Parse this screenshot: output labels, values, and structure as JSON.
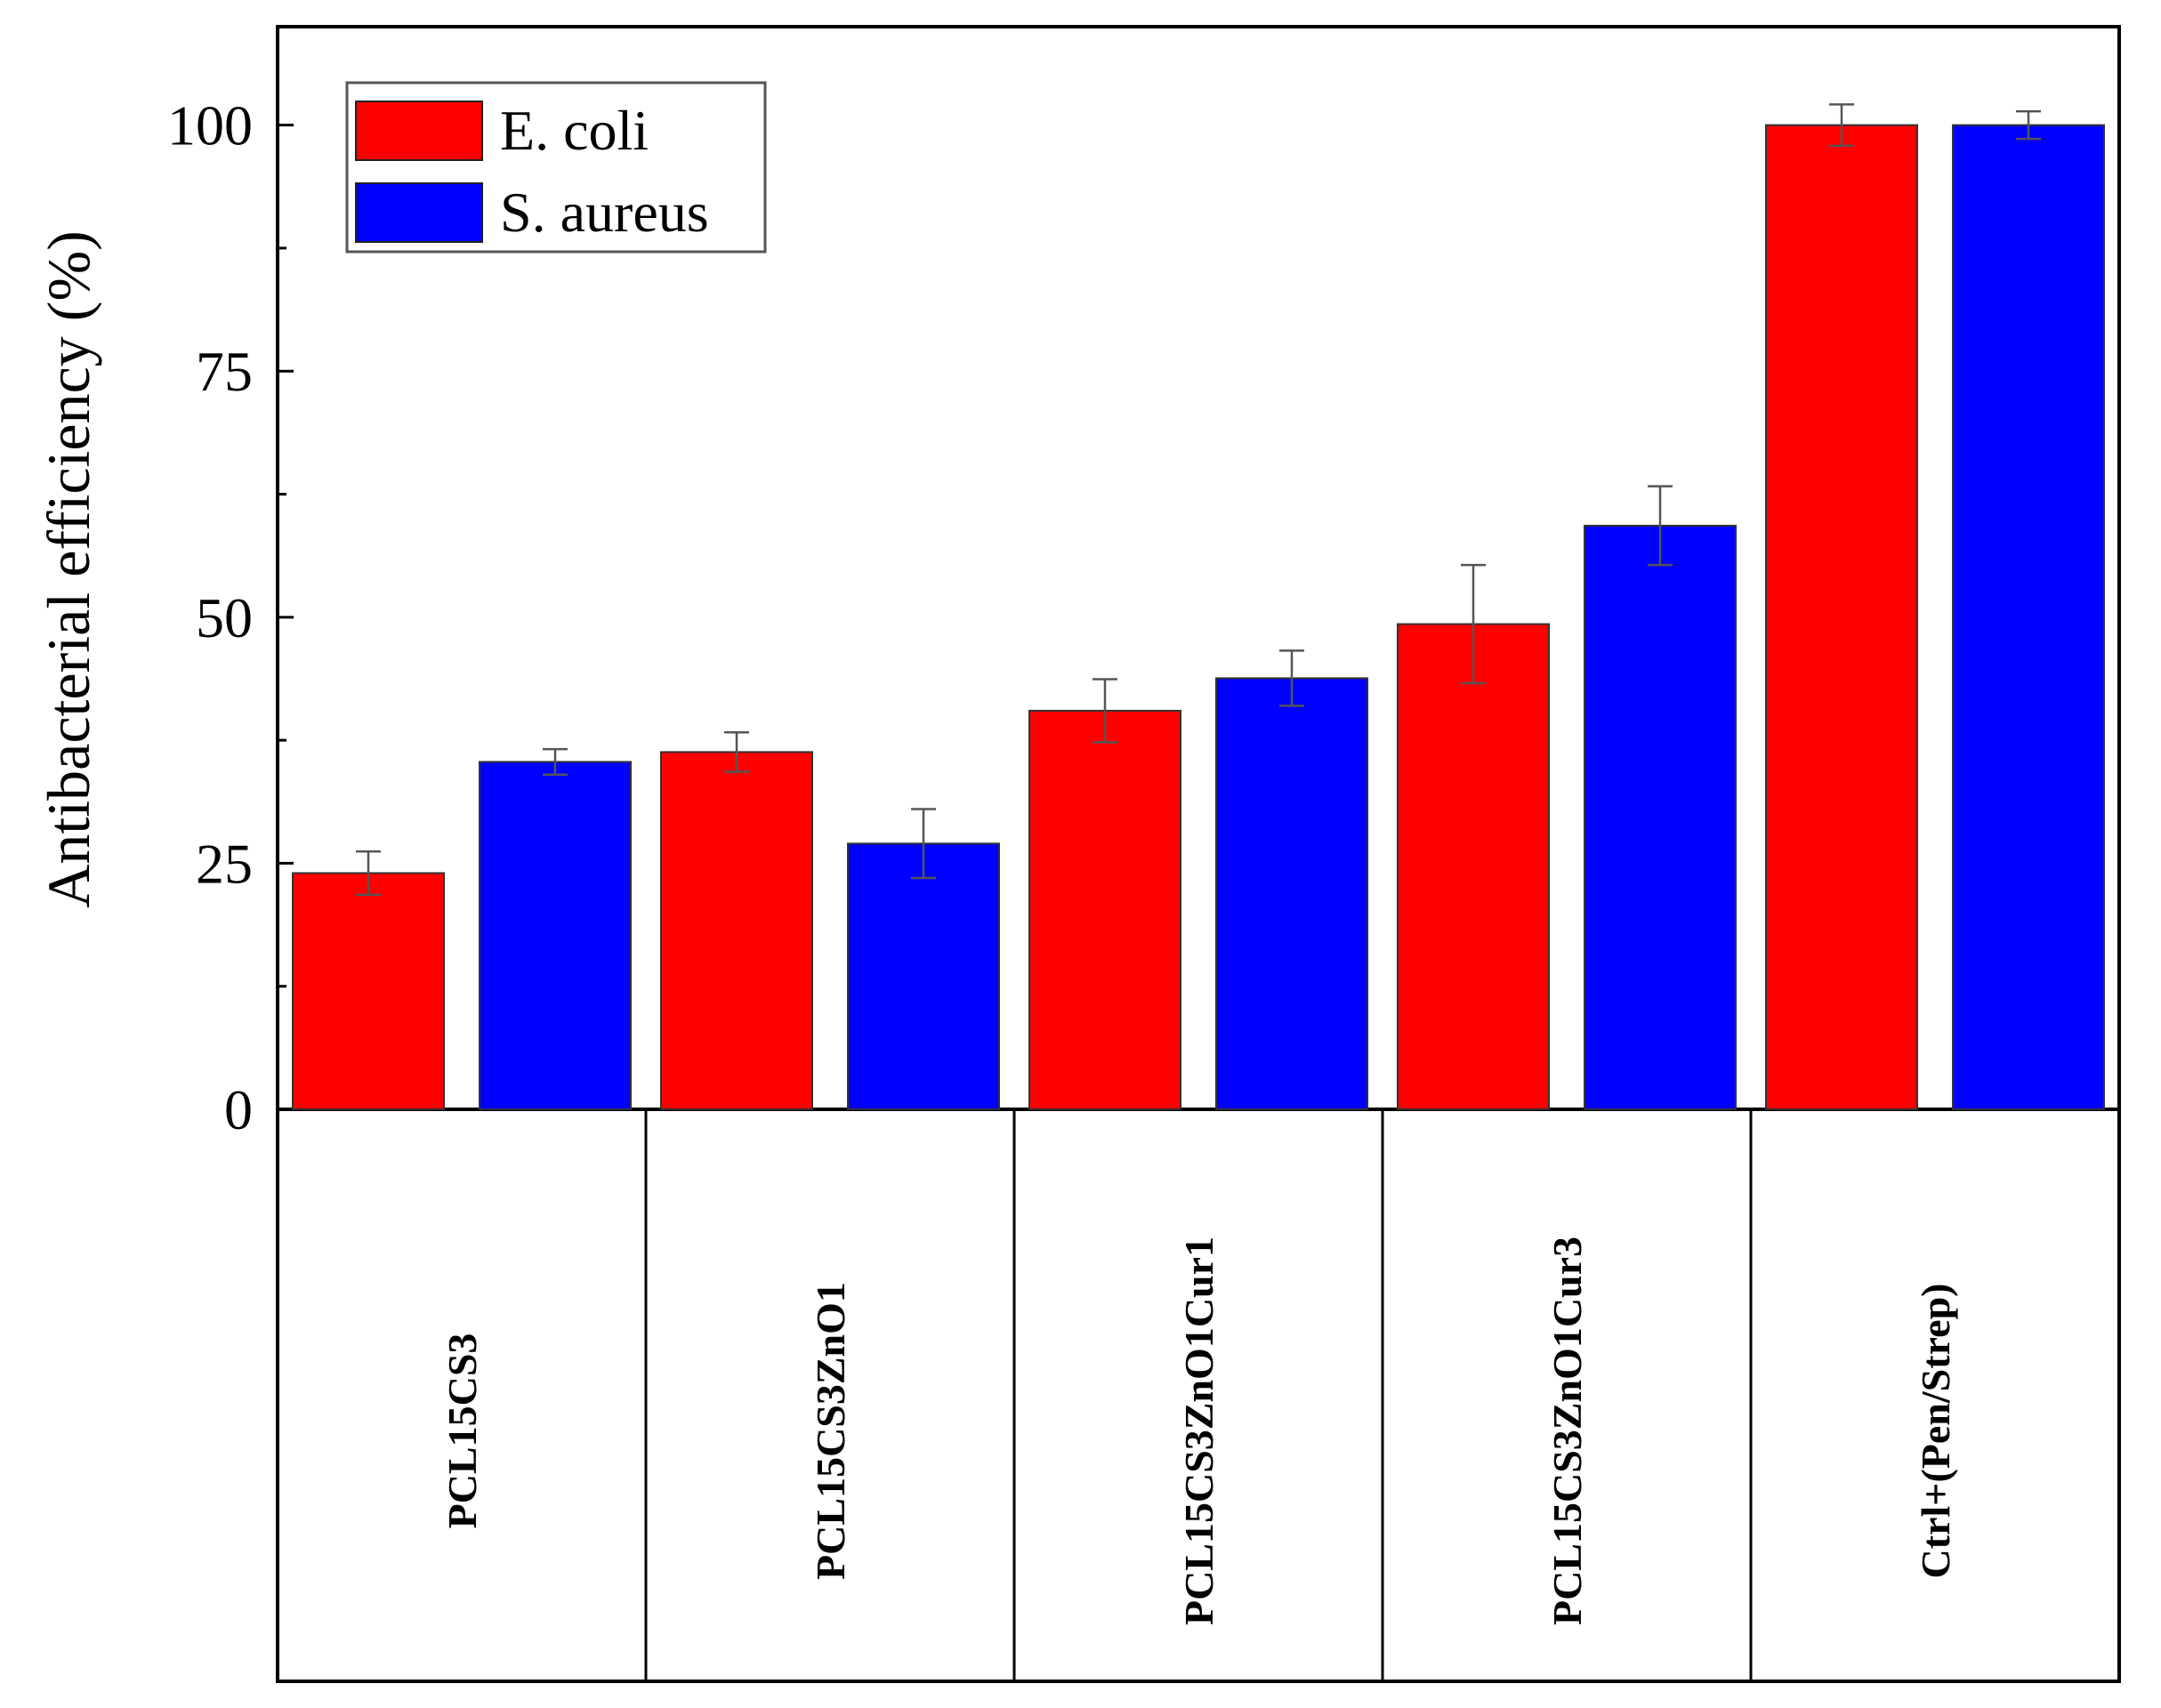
{
  "chart_data": {
    "type": "bar",
    "title": "",
    "xlabel": "",
    "ylabel": "Antibacterial efficiency (%)",
    "ylim": [
      0,
      110
    ],
    "yticks": [
      0,
      25,
      50,
      75,
      100
    ],
    "ytick_labels": [
      "0",
      "25",
      "50",
      "75",
      "100"
    ],
    "grid": false,
    "legend_position": "top-left",
    "categories": [
      "PCL15CS3",
      "PCL15CS3ZnO1",
      "PCL15CS3ZnO1Cur1",
      "PCL15CS3ZnO1Cur3",
      "Ctrl+(Pen/Strep)"
    ],
    "series": [
      {
        "name": "E. coli",
        "color": "#ff0000",
        "values": [
          24,
          36.3,
          40.5,
          49.3,
          100
        ],
        "errors": [
          2.2,
          2.0,
          3.2,
          6.0,
          2.1
        ]
      },
      {
        "name": "S. aureus",
        "color": "#0000ff",
        "values": [
          35.3,
          27,
          43.8,
          59.3,
          100
        ],
        "errors": [
          1.3,
          3.5,
          2.8,
          4.0,
          1.4
        ]
      }
    ]
  }
}
